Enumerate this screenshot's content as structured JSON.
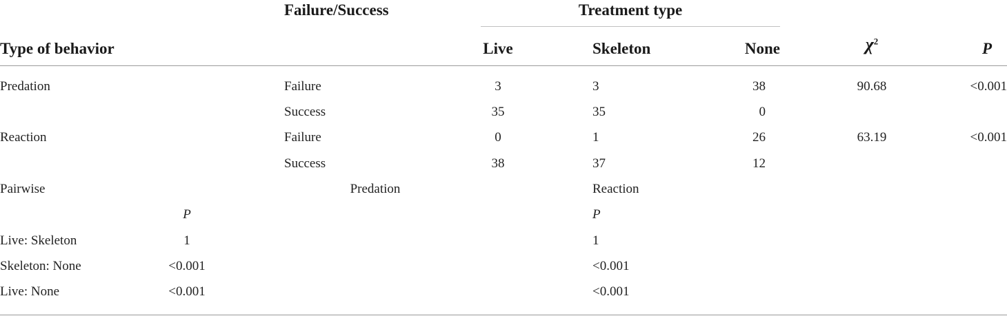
{
  "header": {
    "type_of_behavior": "Type of behavior",
    "failure_success": "Failure/Success",
    "treatment_type": "Treatment type",
    "live": "Live",
    "skeleton": "Skeleton",
    "none": "None",
    "chi_symbol": "χ",
    "chi_superscript": "2",
    "p": "P"
  },
  "rows": [
    {
      "behavior": "Predation",
      "outcome": "Failure",
      "live": "3",
      "skeleton": "3",
      "none": "38",
      "chi2": "90.68",
      "p": "<0.001"
    },
    {
      "behavior": "",
      "outcome": "Success",
      "live": "35",
      "skeleton": "35",
      "none": "0",
      "chi2": "",
      "p": ""
    },
    {
      "behavior": "Reaction",
      "outcome": "Failure",
      "live": "0",
      "skeleton": "1",
      "none": "26",
      "chi2": "63.19",
      "p": "<0.001"
    },
    {
      "behavior": "",
      "outcome": "Success",
      "live": "38",
      "skeleton": "37",
      "none": "12",
      "chi2": "",
      "p": ""
    }
  ],
  "pairwise": {
    "label": "Pairwise",
    "predation_label": "Predation",
    "reaction_label": "Reaction",
    "p_label_predation": "P",
    "p_label_reaction": "P",
    "comparisons": [
      {
        "pair": "Live: Skeleton",
        "predation_p": "1",
        "reaction_p": "1"
      },
      {
        "pair": "Skeleton: None",
        "predation_p": "<0.001",
        "reaction_p": "<0.001"
      },
      {
        "pair": "Live: None",
        "predation_p": "<0.001",
        "reaction_p": "<0.001"
      }
    ]
  }
}
